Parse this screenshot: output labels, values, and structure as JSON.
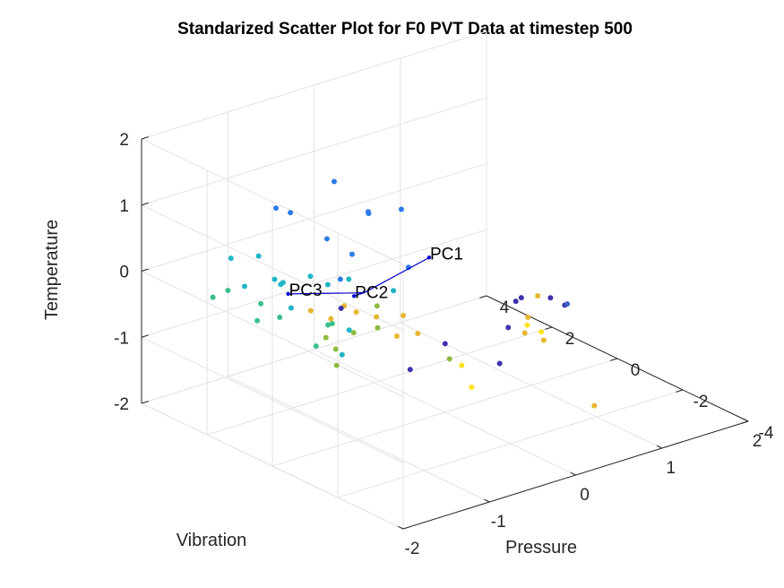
{
  "chart_data": {
    "type": "scatter3d",
    "title": "Standarized Scatter Plot for F0 PVT Data at timestep 500",
    "xlabel": "Pressure",
    "ylabel": "Vibration",
    "zlabel": "Temperature",
    "xlim": [
      -2,
      2
    ],
    "ylim": [
      -4,
      4
    ],
    "zlim": [
      -2,
      2
    ],
    "xticks": [
      "-2",
      "-1",
      "0",
      "1",
      "2"
    ],
    "yticks": [
      "-4",
      "-2",
      "0",
      "2",
      "4"
    ],
    "zticks": [
      "-2",
      "-1",
      "0",
      "1",
      "2"
    ],
    "grid": true,
    "points": [
      {
        "x": -1.39,
        "y": 1.5,
        "z": 1.3,
        "c": "#2d7de8"
      },
      {
        "x": -1.26,
        "y": 1.4,
        "z": 1.2,
        "c": "#2d7de8"
      },
      {
        "x": -0.98,
        "y": 0.8,
        "z": 1.7,
        "c": "#2d7de8"
      },
      {
        "x": -0.7,
        "y": 0.5,
        "z": 1.2,
        "c": "#2d7de8"
      },
      {
        "x": -0.77,
        "y": 0.3,
        "z": 1.25,
        "c": "#2d7de8"
      },
      {
        "x": -0.77,
        "y": -0.7,
        "z": 1.55,
        "c": "#2d7de8"
      },
      {
        "x": -0.95,
        "y": 1.1,
        "z": 0.75,
        "c": "#2d7de8"
      },
      {
        "x": -1.0,
        "y": 0.2,
        "z": 0.75,
        "c": "#2d7de8"
      },
      {
        "x": -1.06,
        "y": 0.4,
        "z": 0.35,
        "c": "#2d7de8"
      },
      {
        "x": -0.65,
        "y": -0.6,
        "z": 0.6,
        "c": "#2d7de8"
      },
      {
        "x": -1.44,
        "y": 1.9,
        "z": 0.5,
        "c": "#1fb5c6"
      },
      {
        "x": -1.57,
        "y": 2.4,
        "z": 0.4,
        "c": "#1fb5c6"
      },
      {
        "x": -1.27,
        "y": 1.6,
        "z": 0.1,
        "c": "#1fb5c6"
      },
      {
        "x": -1.41,
        "y": 1.3,
        "z": 0.2,
        "c": "#1fb5c6"
      },
      {
        "x": -1.18,
        "y": 1.0,
        "z": 0.3,
        "c": "#1fb5c6"
      },
      {
        "x": -1.0,
        "y": 0.3,
        "z": 0.35,
        "c": "#1fb5c6"
      },
      {
        "x": -1.13,
        "y": 0.6,
        "z": 0.25,
        "c": "#1fb5c6"
      },
      {
        "x": -0.71,
        "y": -0.3,
        "z": 0.2,
        "c": "#1fb5c6"
      },
      {
        "x": -1.33,
        "y": 1.7,
        "z": 0.15,
        "c": "#1fb5c6"
      },
      {
        "x": -1.45,
        "y": 2.3,
        "z": -0.05,
        "c": "#1fb5c6"
      },
      {
        "x": -1.1,
        "y": 1.8,
        "z": -0.4,
        "c": "#1fb5c6"
      },
      {
        "x": -1.04,
        "y": 0.4,
        "z": -0.8,
        "c": "#1fb5c6"
      },
      {
        "x": -0.92,
        "y": 0.5,
        "z": -0.5,
        "c": "#1fb5c6"
      },
      {
        "x": -1.3,
        "y": 2.2,
        "z": -0.35,
        "c": "#3cbf8a"
      },
      {
        "x": -1.38,
        "y": 2.1,
        "z": -0.55,
        "c": "#3cbf8a"
      },
      {
        "x": -1.27,
        "y": 1.7,
        "z": -0.45,
        "c": "#3cbf8a"
      },
      {
        "x": -1.59,
        "y": 2.9,
        "z": -0.3,
        "c": "#3cbf8a"
      },
      {
        "x": -1.53,
        "y": 2.6,
        "z": -0.15,
        "c": "#3cbf8a"
      },
      {
        "x": -1.09,
        "y": 0.7,
        "z": -0.4,
        "c": "#3cbf8a"
      },
      {
        "x": -1.0,
        "y": 1.3,
        "z": -0.9,
        "c": "#3cbf8a"
      },
      {
        "x": -1.04,
        "y": 0.7,
        "z": -0.4,
        "c": "#3cbf8a"
      },
      {
        "x": -1.0,
        "y": 1.0,
        "z": -0.7,
        "c": "#8cbc3e"
      },
      {
        "x": -0.83,
        "y": 0.6,
        "z": -0.6,
        "c": "#8cbc3e"
      },
      {
        "x": -0.8,
        "y": 1.2,
        "z": -1.25,
        "c": "#8cbc3e"
      },
      {
        "x": -0.25,
        "y": -0.8,
        "z": -0.9,
        "c": "#8cbc3e"
      },
      {
        "x": -0.81,
        "y": 1.2,
        "z": -1.0,
        "c": "#8cbc3e"
      },
      {
        "x": -0.59,
        "y": 0.5,
        "z": -0.6,
        "c": "#8cbc3e"
      },
      {
        "x": -0.71,
        "y": 0.2,
        "z": -0.15,
        "c": "#8cbc3e"
      },
      {
        "x": -0.8,
        "y": 0.6,
        "z": -0.3,
        "c": "#e8b52f"
      },
      {
        "x": -1.1,
        "y": 1.2,
        "z": -0.3,
        "c": "#e8b52f"
      },
      {
        "x": -0.98,
        "y": 0.9,
        "z": -0.4,
        "c": "#e8b52f"
      },
      {
        "x": -0.68,
        "y": 0.3,
        "z": -0.35,
        "c": "#e8b52f"
      },
      {
        "x": -0.48,
        "y": 0.2,
        "z": -0.7,
        "c": "#e8b52f"
      },
      {
        "x": -0.52,
        "y": -0.1,
        "z": -0.3,
        "c": "#e8b52f"
      },
      {
        "x": -0.94,
        "y": 0.6,
        "z": -0.15,
        "c": "#e8b52f"
      },
      {
        "x": -0.39,
        "y": -0.2,
        "z": -0.6,
        "c": "#e8b52f"
      },
      {
        "x": 0.28,
        "y": -1.8,
        "z": -0.25,
        "c": "#e8b52f"
      },
      {
        "x": 0.32,
        "y": -1.6,
        "z": -0.55,
        "c": "#e8b52f"
      },
      {
        "x": 0.47,
        "y": -1.6,
        "z": -0.05,
        "c": "#e8b52f"
      },
      {
        "x": 0.54,
        "y": -1.6,
        "z": -0.75,
        "c": "#e8b52f"
      },
      {
        "x": 1.05,
        "y": -1.8,
        "z": -1.9,
        "c": "#e8b52f"
      },
      {
        "x": 0.12,
        "y": -0.5,
        "z": -1.55,
        "c": "#ffe220"
      },
      {
        "x": 0.5,
        "y": -1.2,
        "z": -0.6,
        "c": "#ffe220"
      },
      {
        "x": -0.26,
        "y": -1.2,
        "z": -0.9,
        "c": "#ffe220"
      },
      {
        "x": 0.55,
        "y": -1.5,
        "z": -0.65,
        "c": "#ffe220"
      },
      {
        "x": -0.9,
        "y": 0.8,
        "z": -0.25,
        "c": "#3d33b0"
      },
      {
        "x": -0.3,
        "y": -0.8,
        "z": -0.65,
        "c": "#3d33b0"
      },
      {
        "x": -0.44,
        "y": -0.1,
        "z": -1.15,
        "c": "#3d33b0"
      },
      {
        "x": 0.18,
        "y": -1.2,
        "z": -1.05,
        "c": "#3d33b0"
      },
      {
        "x": 0.14,
        "y": -1.8,
        "z": 0.05,
        "c": "#3d33b0"
      },
      {
        "x": 0.28,
        "y": -1.6,
        "z": 0.0,
        "c": "#3d33b0"
      },
      {
        "x": 0.09,
        "y": -1.7,
        "z": -0.35,
        "c": "#3d33b0"
      },
      {
        "x": 0.58,
        "y": -1.7,
        "z": -0.1,
        "c": "#3d33b0"
      },
      {
        "x": 0.67,
        "y": -1.9,
        "z": -0.2,
        "c": "#3d33b0"
      },
      {
        "x": 0.85,
        "y": -1.5,
        "z": -0.35,
        "c": "#3d5ec8"
      }
    ],
    "origin": {
      "x": -0.9,
      "y": 0.1,
      "z": 0.15
    },
    "pc_vectors": [
      {
        "label": "PC1",
        "x": -0.41,
        "y": -0.6,
        "z": 0.65
      },
      {
        "label": "PC2",
        "x": -0.92,
        "y": 0.35,
        "z": 0.05
      },
      {
        "label": "PC3",
        "x": -1.4,
        "y": 1.1,
        "z": 0.1
      }
    ],
    "pc_color": "#0000cd"
  }
}
